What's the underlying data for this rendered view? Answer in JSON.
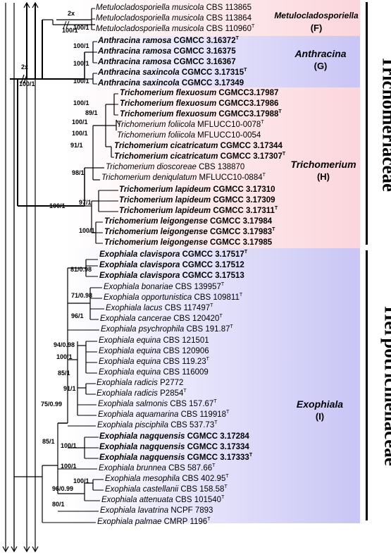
{
  "colors": {
    "metulo_band": "#fbd6dc",
    "anthracina_band": "#c9c5f5",
    "trichomerium_band": "#fbd6dc",
    "exophiala_band": "#c9c5f5"
  },
  "clades": {
    "F": {
      "name": "Metulocladosporiella",
      "label": "(F)"
    },
    "G": {
      "name": "Anthracina",
      "label": "(G)"
    },
    "H": {
      "name": "Trichomerium",
      "label": "(H)"
    },
    "I": {
      "name": "Exophiala",
      "label": "(I)"
    }
  },
  "families": {
    "trichomeriaceae": "Trichomeriaceae",
    "herpotrichiellaceae": "Herpotrichiellaceae"
  },
  "break_labels": {
    "metulo": "2x",
    "root": "2x"
  },
  "taxa": [
    {
      "sp": "Metulocladosporiella musicola",
      "strain": "CBS 113865",
      "sup": "",
      "bold": false
    },
    {
      "sp": "Metulocladosporiella musicola",
      "strain": "CBS 113864",
      "sup": "",
      "bold": false
    },
    {
      "sp": "Metulocladosporiella musicola",
      "strain": "CBS 110960",
      "sup": "T",
      "bold": false
    },
    {
      "sp": "Anthracina ramosa",
      "strain": "CGMCC 3.16372",
      "sup": "T",
      "bold": true
    },
    {
      "sp": "Anthracina ramosa",
      "strain": "CGMCC 3.16375",
      "sup": "",
      "bold": true
    },
    {
      "sp": "Anthracina ramosa",
      "strain": "CGMCC 3.16367",
      "sup": "",
      "bold": true
    },
    {
      "sp": "Anthracina saxincola",
      "strain": "CGMCC 3.17315",
      "sup": "T",
      "bold": true
    },
    {
      "sp": "Anthracina saxincola",
      "strain": "CGMCC 3.17349",
      "sup": "",
      "bold": true
    },
    {
      "sp": "Trichomerium flexuosum",
      "strain": "CGMCC3.17987",
      "sup": "",
      "bold": true
    },
    {
      "sp": "Trichomerium flexuosum",
      "strain": "CGMCC3.17986",
      "sup": "",
      "bold": true
    },
    {
      "sp": "Trichomerium flexuosum",
      "strain": "CGMCC3.17988",
      "sup": "T",
      "bold": true
    },
    {
      "sp": "Trichomerium foliicola",
      "strain": "MFLUCC10-0078",
      "sup": "T",
      "bold": false
    },
    {
      "sp": "Trichomerium foliicola",
      "strain": "MFLUCC10-0054",
      "sup": "",
      "bold": false
    },
    {
      "sp": "Trichomerium cicatricatum",
      "strain": "CGMCC 3.17344",
      "sup": "",
      "bold": true
    },
    {
      "sp": "Trichomerium cicatricatum",
      "strain": "CGMCC 3.17307",
      "sup": "T",
      "bold": true
    },
    {
      "sp": "Trichomerium dioscoreae",
      "strain": "CBS 138870",
      "sup": "",
      "bold": false
    },
    {
      "sp": "Trichomerium deniqulatum",
      "strain": "MFLUCC10-0884",
      "sup": "T",
      "bold": false
    },
    {
      "sp": "Trichomerium lapideum",
      "strain": "CGMCC 3.17310",
      "sup": "",
      "bold": true
    },
    {
      "sp": "Trichomerium lapideum",
      "strain": "CGMCC 3.17309",
      "sup": "",
      "bold": true
    },
    {
      "sp": "Trichomerium lapideum",
      "strain": "CGMCC 3.17311",
      "sup": "T",
      "bold": true
    },
    {
      "sp": "Trichomerium leigongense",
      "strain": "CGMCC 3.17984",
      "sup": "",
      "bold": true
    },
    {
      "sp": "Trichomerium leigongense",
      "strain": "CGMCC 3.17983",
      "sup": "T",
      "bold": true
    },
    {
      "sp": "Trichomerium leigongense",
      "strain": "CGMCC 3.17985",
      "sup": "",
      "bold": true
    },
    {
      "sp": "Exophiala clavispora",
      "strain": "CGMCC 3.17517",
      "sup": "T",
      "bold": true
    },
    {
      "sp": "Exophiala clavispora",
      "strain": "CGMCC 3.17512",
      "sup": "",
      "bold": true
    },
    {
      "sp": "Exophiala clavispora",
      "strain": "CGMCC 3.17513",
      "sup": "",
      "bold": true
    },
    {
      "sp": "Exophiala bonariae",
      "strain": "CBS 139957",
      "sup": "T",
      "bold": false
    },
    {
      "sp": "Exophiala opportunistica",
      "strain": "CBS 109811",
      "sup": "T",
      "bold": false
    },
    {
      "sp": "Exophiala lacus",
      "strain": "CBS 117497",
      "sup": "T",
      "bold": false
    },
    {
      "sp": "Exophiala cancerae",
      "strain": "CBS 120420",
      "sup": "T",
      "bold": false
    },
    {
      "sp": "Exophiala psychrophila",
      "strain": "CBS 191.87",
      "sup": "T",
      "bold": false
    },
    {
      "sp": "Exophiala equina",
      "strain": "CBS 121501",
      "sup": "",
      "bold": false
    },
    {
      "sp": "Exophiala equina",
      "strain": "CBS 120906",
      "sup": "",
      "bold": false
    },
    {
      "sp": "Exophiala equina",
      "strain": "CBS 119.23",
      "sup": "T",
      "bold": false
    },
    {
      "sp": "Exophiala equina",
      "strain": "CBS 116009",
      "sup": "",
      "bold": false
    },
    {
      "sp": "Exophiala radicis",
      "strain": "P2772",
      "sup": "",
      "bold": false
    },
    {
      "sp": "Exophiala radicis",
      "strain": "P2854",
      "sup": "T",
      "bold": false
    },
    {
      "sp": "Exophiala salmonis",
      "strain": "CBS 157.67",
      "sup": "T",
      "bold": false
    },
    {
      "sp": "Exophiala aquamarina",
      "strain": "CBS 119918",
      "sup": "T",
      "bold": false
    },
    {
      "sp": "Exophiala pisciphila",
      "strain": "CBS 537.73",
      "sup": "T",
      "bold": false
    },
    {
      "sp": "Exophiala nagquensis",
      "strain": "CGMCC 3.17284",
      "sup": "",
      "bold": true
    },
    {
      "sp": "Exophiala nagquensis",
      "strain": "CGMCC 3.17334",
      "sup": "",
      "bold": true
    },
    {
      "sp": "Exophiala nagquensis",
      "strain": "CGMCC 3.17333",
      "sup": "T",
      "bold": true
    },
    {
      "sp": "Exophiala brunnea",
      "strain": "CBS 587.66",
      "sup": "T",
      "bold": false
    },
    {
      "sp": "Exophiala mesophila",
      "strain": "CBS 402.95",
      "sup": "T",
      "bold": false
    },
    {
      "sp": "Exophiala castellanii",
      "strain": "CBS 158.58",
      "sup": "T",
      "bold": false
    },
    {
      "sp": "Exophiala attenuata",
      "strain": "CBS 101540",
      "sup": "T",
      "bold": false
    },
    {
      "sp": "Exophiala lavatrina",
      "strain": "NCPF 7893",
      "sup": "",
      "bold": false
    },
    {
      "sp": "Exophiala palmae",
      "strain": "CMRP 1196",
      "sup": "T",
      "bold": false
    }
  ],
  "support_values": [
    "100/1",
    "100/1",
    "100/1",
    "100/1",
    "100/1",
    "100/1",
    "100/1",
    "89/1",
    "100/1",
    "100/1",
    "91/1",
    "98/1",
    "100/1",
    "97/1",
    "100/1",
    "81/0.98",
    "71/0.98",
    "96/1",
    "94/0.98",
    "100/1",
    "85/1",
    "91/1",
    "75/0.99",
    "100/1",
    "100/1",
    "85/1",
    "100/1",
    "96/0.99",
    "80/1"
  ]
}
